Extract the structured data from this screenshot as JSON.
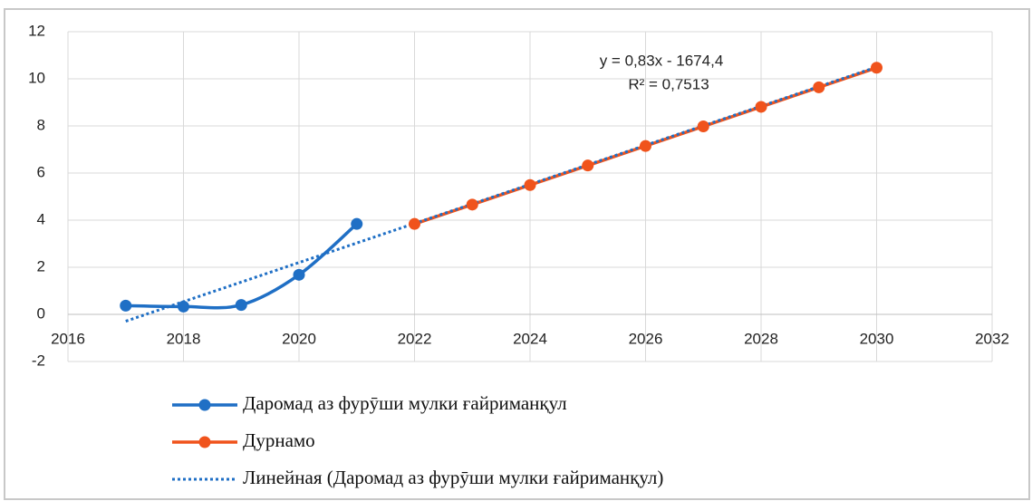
{
  "chart_data": {
    "type": "line",
    "annotations": [
      "y = 0,83x - 1674,4",
      "R² = 0,7513"
    ],
    "series": [
      {
        "name": "Даромад аз фурӯши мулки ғайриманқул",
        "color": "#1f6fc5",
        "smooth": true,
        "markers": true,
        "x": [
          2017,
          2018,
          2019,
          2020,
          2021
        ],
        "values": [
          0.37,
          0.33,
          0.4,
          1.68,
          3.84
        ]
      },
      {
        "name": "Дурнамо",
        "color": "#f0531c",
        "smooth": false,
        "markers": true,
        "x": [
          2022,
          2023,
          2024,
          2025,
          2026,
          2027,
          2028,
          2029,
          2030
        ],
        "values": [
          3.84,
          4.66,
          5.49,
          6.32,
          7.15,
          7.98,
          8.81,
          9.64,
          10.47
        ]
      },
      {
        "name": "Линейная (Даромад аз фурӯши мулки ғайриманқул)",
        "color": "#1f6fc5",
        "smooth": false,
        "markers": false,
        "line_style": "dotted",
        "x": [
          2017,
          2030
        ],
        "values": [
          -0.29,
          10.5
        ]
      }
    ],
    "xlim": [
      2016,
      2032
    ],
    "xticks": [
      2016,
      2018,
      2020,
      2022,
      2024,
      2026,
      2028,
      2030,
      2032
    ],
    "ylim": [
      -2,
      12
    ],
    "yticks": [
      -2,
      0,
      2,
      4,
      6,
      8,
      10,
      12
    ],
    "grid": true,
    "legend": "bottom"
  }
}
